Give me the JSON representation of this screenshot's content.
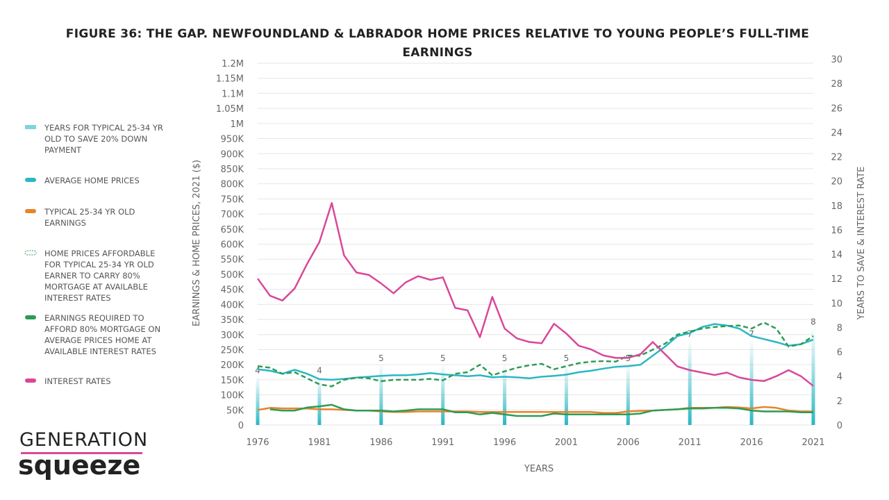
{
  "chart_data": {
    "type": "line",
    "title": "FIGURE 36: THE GAP. NEWFOUNDLAND & LABRADOR HOME PRICES RELATIVE TO YOUNG PEOPLE’S FULL-TIME EARNINGS",
    "xlabel": "YEARS",
    "ylabel": "EARNINGS & HOME PRICES, 2021 ($)",
    "y2label": "YEARS TO SAVE & INTEREST RATE",
    "x": [
      1976,
      1977,
      1978,
      1979,
      1980,
      1981,
      1982,
      1983,
      1984,
      1985,
      1986,
      1987,
      1988,
      1989,
      1990,
      1991,
      1992,
      1993,
      1994,
      1995,
      1996,
      1997,
      1998,
      1999,
      2000,
      2001,
      2002,
      2003,
      2004,
      2005,
      2006,
      2007,
      2008,
      2009,
      2010,
      2011,
      2012,
      2013,
      2014,
      2015,
      2016,
      2017,
      2018,
      2019,
      2020,
      2021
    ],
    "xlim": [
      1976,
      2021
    ],
    "xticks": [
      1976,
      1981,
      1986,
      1991,
      1996,
      2001,
      2006,
      2011,
      2016,
      2021
    ],
    "ylim": [
      0,
      1200000
    ],
    "yticks": [
      0,
      {
        "value": 50000,
        "label": "50K"
      },
      {
        "value": 100000,
        "label": "100K"
      },
      {
        "value": 150000,
        "label": "150K"
      },
      {
        "value": 200000,
        "label": "200K"
      },
      {
        "value": 250000,
        "label": "250K"
      },
      {
        "value": 300000,
        "label": "300K"
      },
      {
        "value": 350000,
        "label": "350K"
      },
      {
        "value": 400000,
        "label": "400K"
      },
      {
        "value": 450000,
        "label": "450K"
      },
      {
        "value": 500000,
        "label": "500K"
      },
      {
        "value": 550000,
        "label": "550K"
      },
      {
        "value": 600000,
        "label": "600K"
      },
      {
        "value": 650000,
        "label": "650K"
      },
      {
        "value": 700000,
        "label": "700K"
      },
      {
        "value": 750000,
        "label": "750K"
      },
      {
        "value": 800000,
        "label": "800K"
      },
      {
        "value": 850000,
        "label": "850K"
      },
      {
        "value": 900000,
        "label": "900K"
      },
      {
        "value": 950000,
        "label": "950K"
      },
      {
        "value": 1000000,
        "label": "1M"
      },
      {
        "value": 1050000,
        "label": "1.05M"
      },
      {
        "value": 1100000,
        "label": "1.1M"
      },
      {
        "value": 1150000,
        "label": "1.15M"
      },
      {
        "value": 1200000,
        "label": "1.2M"
      }
    ],
    "y2lim": [
      0,
      30
    ],
    "y2ticks": [
      0,
      2,
      4,
      6,
      8,
      10,
      12,
      14,
      16,
      18,
      20,
      22,
      24,
      26,
      28,
      30
    ],
    "grid": true,
    "bars": {
      "name": "YEARS FOR TYPICAL 25-34 YR OLD TO SAVE 20% DOWN PAYMENT",
      "color": "#2ab7c4",
      "axis": "y2",
      "x": [
        1976,
        1981,
        1986,
        1991,
        1996,
        2001,
        2006,
        2011,
        2016,
        2021
      ],
      "values": [
        4,
        4,
        5,
        5,
        5,
        5,
        5,
        7,
        7,
        8
      ]
    },
    "series": [
      {
        "name": "AVERAGE HOME PRICES",
        "color": "#2ab7c4",
        "values": [
          185000,
          180000,
          170000,
          183000,
          170000,
          152000,
          150000,
          153000,
          157000,
          160000,
          163000,
          165000,
          165000,
          168000,
          172000,
          168000,
          165000,
          162000,
          165000,
          158000,
          160000,
          158000,
          155000,
          160000,
          163000,
          167000,
          175000,
          180000,
          187000,
          193000,
          195000,
          200000,
          230000,
          260000,
          295000,
          305000,
          325000,
          335000,
          330000,
          320000,
          295000,
          285000,
          275000,
          263000,
          268000,
          283000
        ]
      },
      {
        "name": "TYPICAL 25-34 YR OLD EARNINGS",
        "color": "#e8832a",
        "values": [
          50000,
          57000,
          55000,
          55000,
          55000,
          52000,
          52000,
          50000,
          48000,
          48000,
          45000,
          43000,
          43000,
          45000,
          45000,
          45000,
          45000,
          45000,
          43000,
          43000,
          43000,
          43000,
          43000,
          43000,
          43000,
          43000,
          43000,
          43000,
          40000,
          40000,
          45000,
          47000,
          48000,
          50000,
          52000,
          57000,
          57000,
          57000,
          60000,
          58000,
          55000,
          60000,
          57000,
          48000,
          45000,
          45000
        ]
      },
      {
        "name": "HOME PRICES AFFORDABLE FOR TYPICAL 25-34 YR OLD EARNER TO CARRY 80% MORTGAGE AT AVAILABLE INTEREST RATES",
        "color": "#2e9b54",
        "style": "dashed",
        "values": [
          195000,
          190000,
          170000,
          175000,
          155000,
          135000,
          128000,
          150000,
          157000,
          155000,
          145000,
          150000,
          150000,
          150000,
          153000,
          148000,
          170000,
          175000,
          200000,
          165000,
          178000,
          190000,
          198000,
          203000,
          185000,
          195000,
          205000,
          210000,
          212000,
          210000,
          230000,
          230000,
          250000,
          270000,
          300000,
          310000,
          320000,
          325000,
          328000,
          330000,
          320000,
          340000,
          320000,
          260000,
          268000,
          295000
        ]
      },
      {
        "name": "EARNINGS REQUIRED TO AFFORD 80% MORTGAGE ON AVERAGE PRICES HOME AT AVAILABLE INTEREST RATES",
        "color": "#2e9b54",
        "values": [
          null,
          52000,
          48000,
          48000,
          58000,
          62000,
          67000,
          52000,
          48000,
          48000,
          48000,
          45000,
          48000,
          52000,
          52000,
          52000,
          42000,
          42000,
          35000,
          40000,
          35000,
          30000,
          30000,
          30000,
          38000,
          35000,
          35000,
          35000,
          35000,
          35000,
          35000,
          38000,
          48000,
          50000,
          52000,
          55000,
          55000,
          57000,
          57000,
          55000,
          48000,
          45000,
          45000,
          45000,
          42000,
          42000
        ]
      },
      {
        "name": "INTEREST RATES",
        "color": "#d9479a",
        "axis": "y2",
        "values": [
          12.0,
          10.6,
          10.2,
          11.2,
          13.2,
          15.0,
          18.2,
          13.9,
          12.5,
          12.3,
          11.6,
          10.8,
          11.7,
          12.2,
          11.9,
          12.1,
          9.6,
          9.4,
          7.2,
          10.5,
          7.9,
          7.1,
          6.8,
          6.7,
          8.3,
          7.5,
          6.5,
          6.2,
          5.7,
          5.5,
          5.5,
          5.8,
          6.8,
          5.8,
          4.8,
          4.5,
          4.3,
          4.1,
          4.3,
          3.9,
          3.7,
          3.6,
          4.0,
          4.5,
          4.0,
          3.2
        ]
      }
    ]
  },
  "logo": {
    "line1": "GENERATION",
    "line2": "squeeze"
  }
}
